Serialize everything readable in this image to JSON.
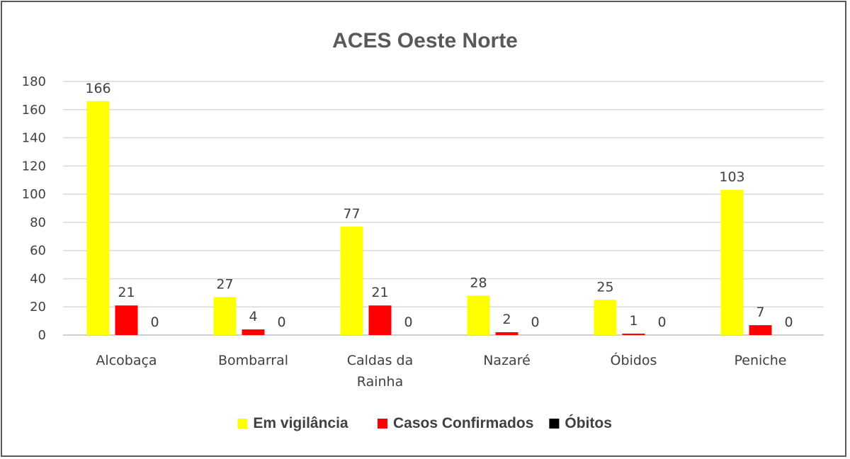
{
  "chart_data": {
    "type": "bar",
    "title": "ACES Oeste Norte",
    "categories": [
      [
        "Alcobaça"
      ],
      [
        "Bombarral"
      ],
      [
        "Caldas da",
        "Rainha"
      ],
      [
        "Nazaré"
      ],
      [
        "Óbidos"
      ],
      [
        "Peniche"
      ]
    ],
    "series": [
      {
        "name": "Em vigilância",
        "color": "#ffff00",
        "values": [
          166,
          27,
          77,
          28,
          25,
          103
        ]
      },
      {
        "name": "Casos Confirmados",
        "color": "#ff0000",
        "values": [
          21,
          4,
          21,
          2,
          1,
          7
        ]
      },
      {
        "name": "Óbitos",
        "color": "#000000",
        "values": [
          0,
          0,
          0,
          0,
          0,
          0
        ]
      }
    ],
    "ylim": [
      0,
      180
    ],
    "yticks": [
      0,
      20,
      40,
      60,
      80,
      100,
      120,
      140,
      160,
      180
    ],
    "grid": true,
    "legend_position": "bottom",
    "data_labels": true
  }
}
